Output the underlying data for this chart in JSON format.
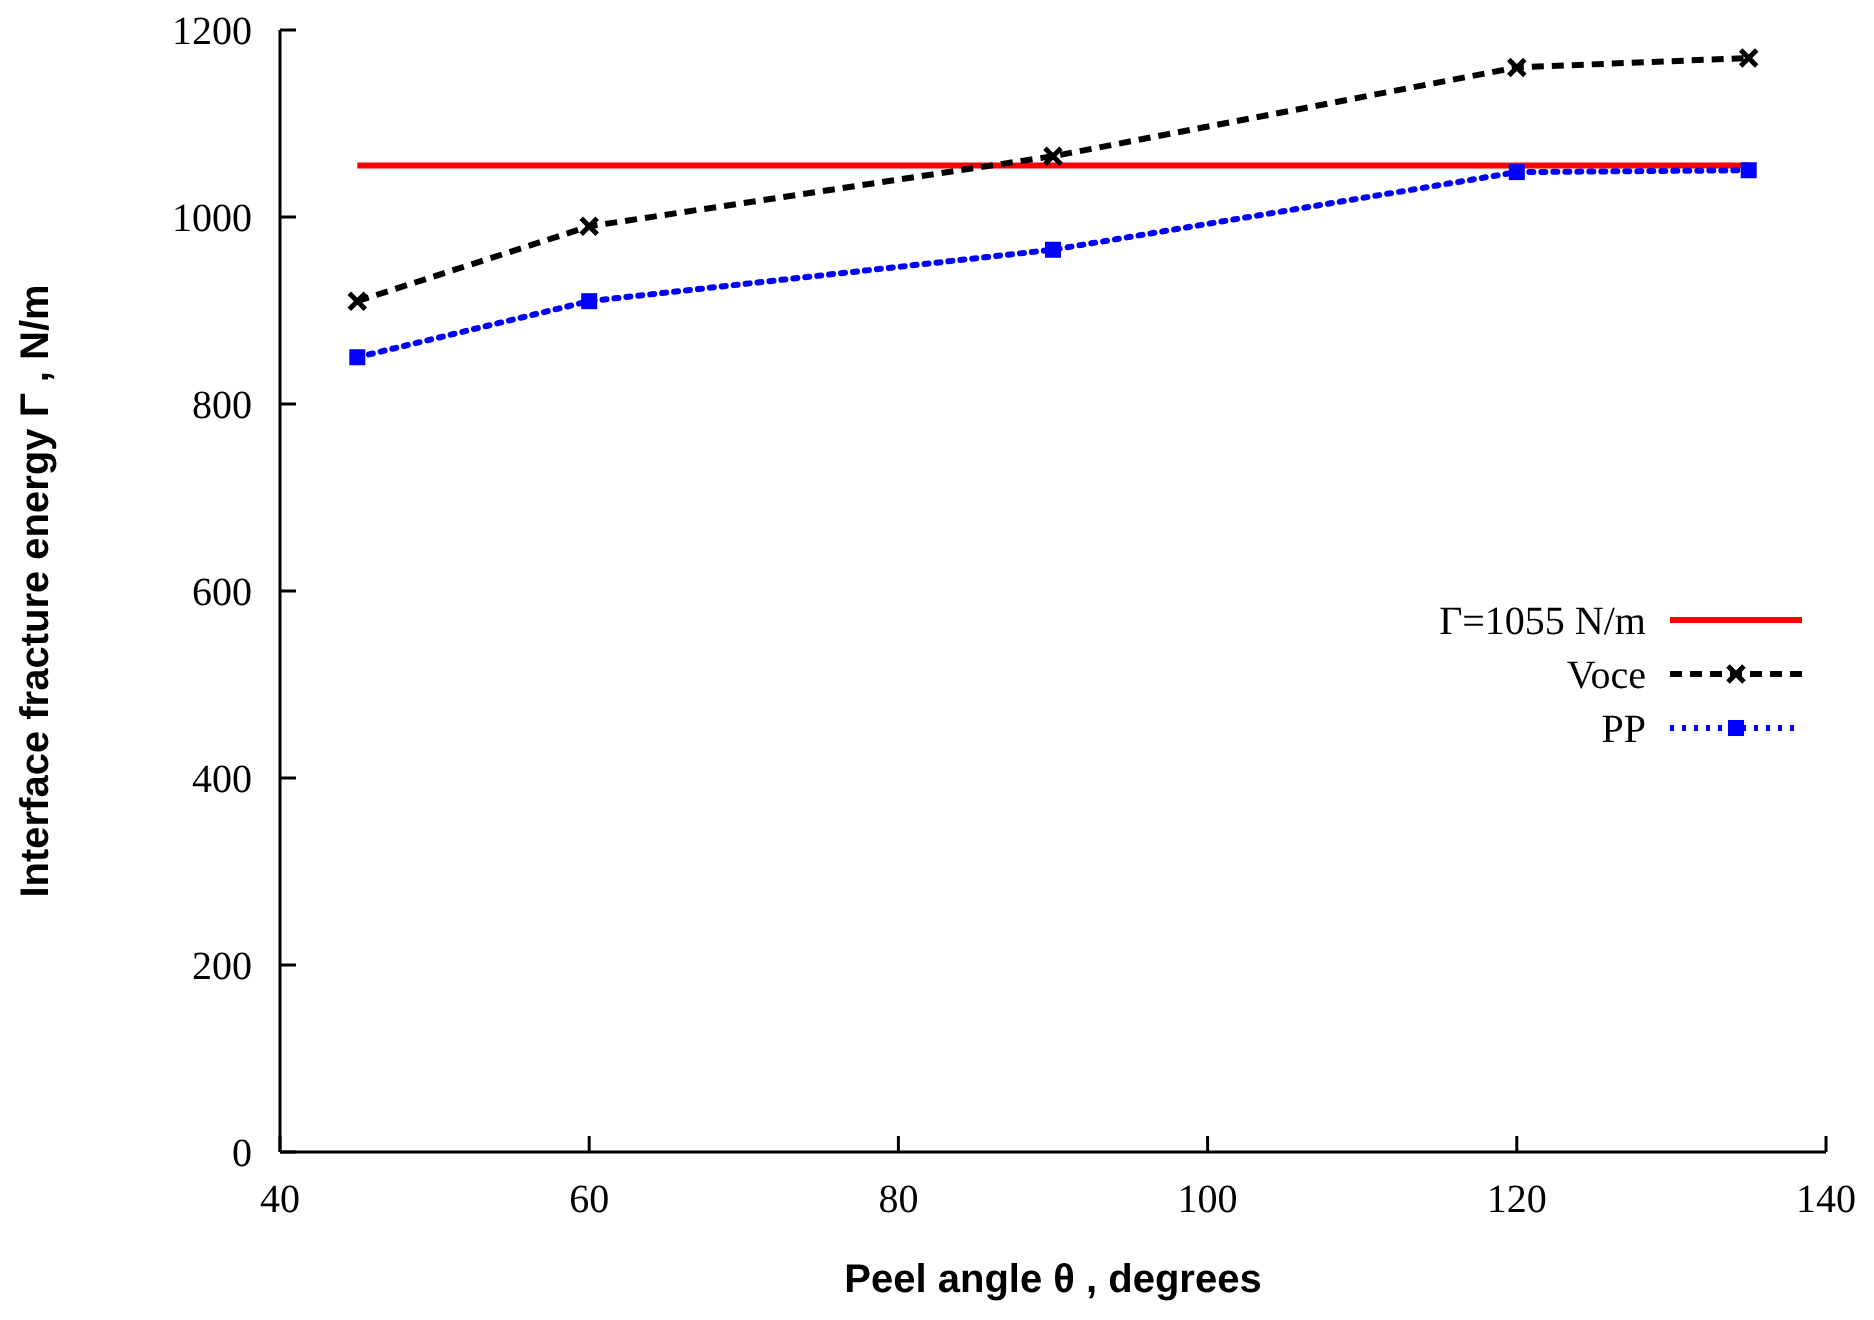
{
  "chart_data": {
    "type": "line",
    "xlabel": "Peel angle θ , degrees",
    "ylabel": "Interface fracture energy Γ , N/m",
    "xlim": [
      40,
      140
    ],
    "xticks": [
      40,
      60,
      80,
      100,
      120,
      140
    ],
    "ylim": [
      0,
      1200
    ],
    "yticks": [
      0,
      200,
      400,
      600,
      800,
      1000,
      1200
    ],
    "grid": false,
    "legend": "right",
    "series": [
      {
        "name": "Γ=1055 N/m",
        "color": "#ff0000",
        "x": [
          45,
          135
        ],
        "values": [
          1055,
          1055
        ],
        "marker": "none",
        "line_style": "solid"
      },
      {
        "name": "Voce",
        "color": "#000000",
        "x": [
          45,
          60,
          90,
          120,
          135
        ],
        "values": [
          910,
          990,
          1065,
          1160,
          1170
        ],
        "marker": "cross",
        "line_style": "dashed"
      },
      {
        "name": "PP",
        "color": "#0000ff",
        "x": [
          45,
          60,
          90,
          120,
          135
        ],
        "values": [
          850,
          910,
          965,
          1048,
          1050
        ],
        "marker": "square",
        "line_style": "dotted"
      }
    ]
  }
}
